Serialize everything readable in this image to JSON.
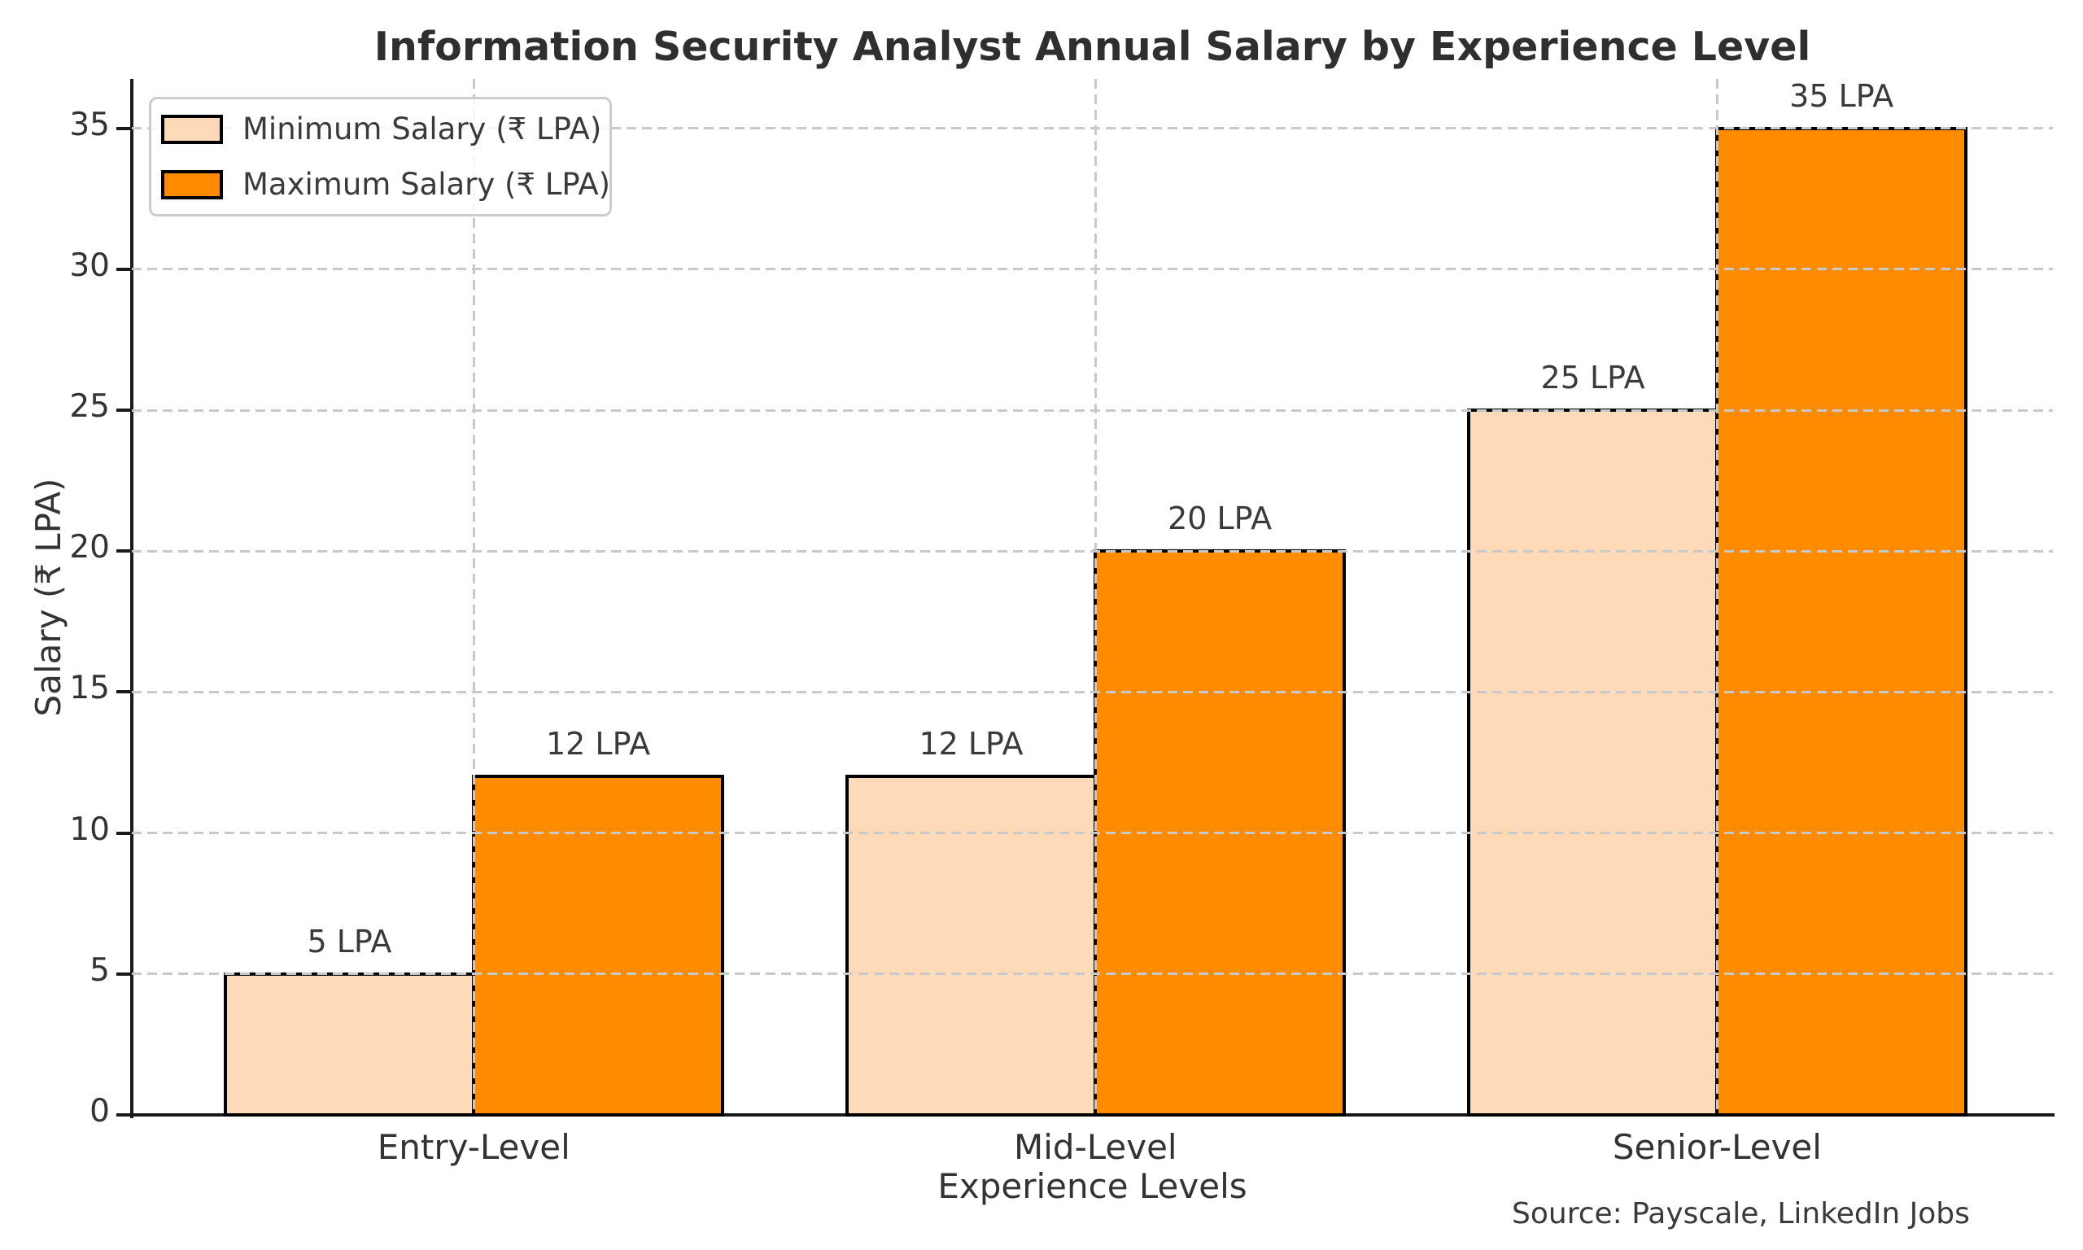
{
  "chart_data": {
    "type": "bar",
    "title": "Information Security Analyst Annual Salary by Experience Level",
    "xlabel": "Experience Levels",
    "ylabel": "Salary (₹ LPA)",
    "categories": [
      "Entry-Level",
      "Mid-Level",
      "Senior-Level"
    ],
    "series": [
      {
        "name": "Minimum Salary (₹ LPA)",
        "color": "#FFDAB9",
        "values": [
          5,
          12,
          25
        ]
      },
      {
        "name": "Maximum Salary (₹ LPA)",
        "color": "#FF8C00",
        "values": [
          12,
          20,
          35
        ]
      }
    ],
    "bar_label_suffix": " LPA",
    "yticks": [
      0,
      5,
      10,
      15,
      20,
      25,
      30,
      35
    ],
    "ylim": [
      0,
      36.75
    ],
    "grid": "dashed",
    "grid_color": "#c9c9c9",
    "legend_position": "upper left",
    "source": "Source: Payscale, LinkedIn Jobs",
    "bar_edge_color": "#000000",
    "text_color": "#333333"
  }
}
